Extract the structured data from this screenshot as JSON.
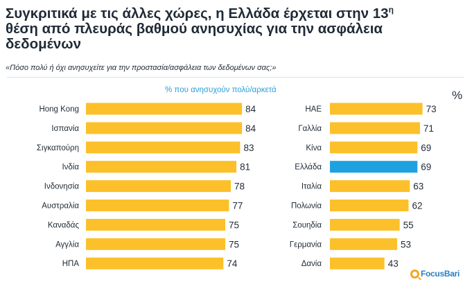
{
  "header": {
    "title_line1_main": "Συγκριτικά με τις άλλες χώρες, η Ελλάδα έρχεται στην 13",
    "title_line1_sup": "η",
    "title_line2": "θέση από πλευράς βαθμού ανησυχίας για την ασφάλεια",
    "title_line3": "δεδομένων",
    "subtitle": "«Πόσο πολύ ή όχι ανησυχείτε για την προστασία/ασφάλεια των δεδομένων σας;»"
  },
  "colors": {
    "bar": "#fcc02a",
    "highlight": "#1ea1e0",
    "text": "#1f2a36"
  },
  "chart_data": {
    "type": "bar",
    "orientation": "horizontal",
    "series_label": "% που ανησυχούν πολύ/αρκετά",
    "unit_label": "%",
    "xlim": [
      0,
      100
    ],
    "panels": [
      {
        "categories": [
          "Hong Kong",
          "Ισπανία",
          "Σιγκαπούρη",
          "Ινδία",
          "Ινδονησία",
          "Αυστραλία",
          "Καναδάς",
          "Αγγλία",
          "ΗΠΑ"
        ],
        "values": [
          84,
          84,
          83,
          81,
          78,
          77,
          75,
          75,
          74
        ],
        "highlight": ""
      },
      {
        "categories": [
          "ΗΑΕ",
          "Γαλλία",
          "Κίνα",
          "Ελλάδα",
          "Ιταλία",
          "Πολωνία",
          "Σουηδία",
          "Γερμανία",
          "Δανία"
        ],
        "values": [
          73,
          71,
          69,
          69,
          63,
          62,
          55,
          53,
          43
        ],
        "highlight": "Ελλάδα"
      }
    ]
  },
  "logo": {
    "text": "FocusBari"
  }
}
